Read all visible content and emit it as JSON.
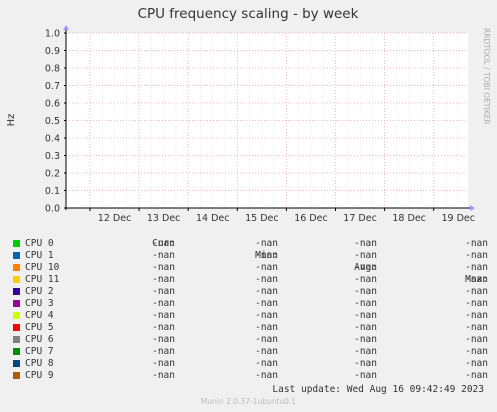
{
  "chart_data": {
    "type": "line",
    "title": "CPU frequency scaling - by week",
    "ylabel": "Hz",
    "side_label": "RRDTOOL / TOBI OETIKER",
    "y_ticks": [
      "0.0",
      "0.1",
      "0.2",
      "0.3",
      "0.4",
      "0.5",
      "0.6",
      "0.7",
      "0.8",
      "0.9",
      "1.0"
    ],
    "ylim": [
      0,
      1
    ],
    "x_ticks": [
      "12 Dec",
      "13 Dec",
      "14 Dec",
      "15 Dec",
      "16 Dec",
      "17 Dec",
      "18 Dec",
      "19 Dec"
    ],
    "grid": true,
    "series": [
      {
        "name": "CPU 0",
        "color": "#00cc00",
        "values": []
      },
      {
        "name": "CPU 1",
        "color": "#0066b3",
        "values": []
      },
      {
        "name": "CPU 10",
        "color": "#ff8000",
        "values": []
      },
      {
        "name": "CPU 11",
        "color": "#ffcc00",
        "values": []
      },
      {
        "name": "CPU 2",
        "color": "#330099",
        "values": []
      },
      {
        "name": "CPU 3",
        "color": "#990099",
        "values": []
      },
      {
        "name": "CPU 4",
        "color": "#ccff00",
        "values": []
      },
      {
        "name": "CPU 5",
        "color": "#ff0000",
        "values": []
      },
      {
        "name": "CPU 6",
        "color": "#808080",
        "values": []
      },
      {
        "name": "CPU 7",
        "color": "#008f00",
        "values": []
      },
      {
        "name": "CPU 8",
        "color": "#00487d",
        "values": []
      },
      {
        "name": "CPU 9",
        "color": "#b35a00",
        "values": []
      }
    ]
  },
  "legend": {
    "headers": [
      "Cur:",
      "Min:",
      "Avg:",
      "Max:"
    ],
    "rows": [
      {
        "name": "CPU 0",
        "color": "#00cc00",
        "cur": "-nan",
        "min": "-nan",
        "avg": "-nan",
        "max": "-nan"
      },
      {
        "name": "CPU 1",
        "color": "#0066b3",
        "cur": "-nan",
        "min": "-nan",
        "avg": "-nan",
        "max": "-nan"
      },
      {
        "name": "CPU 10",
        "color": "#ff8000",
        "cur": "-nan",
        "min": "-nan",
        "avg": "-nan",
        "max": "-nan"
      },
      {
        "name": "CPU 11",
        "color": "#ffcc00",
        "cur": "-nan",
        "min": "-nan",
        "avg": "-nan",
        "max": "-nan"
      },
      {
        "name": "CPU 2",
        "color": "#330099",
        "cur": "-nan",
        "min": "-nan",
        "avg": "-nan",
        "max": "-nan"
      },
      {
        "name": "CPU 3",
        "color": "#990099",
        "cur": "-nan",
        "min": "-nan",
        "avg": "-nan",
        "max": "-nan"
      },
      {
        "name": "CPU 4",
        "color": "#ccff00",
        "cur": "-nan",
        "min": "-nan",
        "avg": "-nan",
        "max": "-nan"
      },
      {
        "name": "CPU 5",
        "color": "#ff0000",
        "cur": "-nan",
        "min": "-nan",
        "avg": "-nan",
        "max": "-nan"
      },
      {
        "name": "CPU 6",
        "color": "#808080",
        "cur": "-nan",
        "min": "-nan",
        "avg": "-nan",
        "max": "-nan"
      },
      {
        "name": "CPU 7",
        "color": "#008f00",
        "cur": "-nan",
        "min": "-nan",
        "avg": "-nan",
        "max": "-nan"
      },
      {
        "name": "CPU 8",
        "color": "#00487d",
        "cur": "-nan",
        "min": "-nan",
        "avg": "-nan",
        "max": "-nan"
      },
      {
        "name": "CPU 9",
        "color": "#b35a00",
        "cur": "-nan",
        "min": "-nan",
        "avg": "-nan",
        "max": "-nan"
      }
    ]
  },
  "last_update": "Last update: Wed Aug 16 09:42:49 2023",
  "footer": "Munin 2.0.37-1ubuntu0.1"
}
